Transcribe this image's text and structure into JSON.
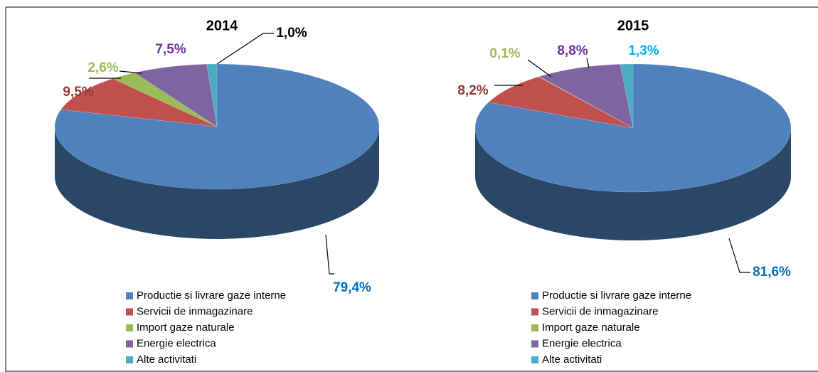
{
  "chart_data": [
    {
      "type": "pie",
      "title": "2014",
      "categories": [
        "Productie si livrare gaze interne",
        "Servicii de inmagazinare",
        "Import gaze naturale",
        "Energie electrica",
        "Alte activitati"
      ],
      "values": [
        79.4,
        9.5,
        2.6,
        7.5,
        1.0
      ],
      "value_labels": [
        "79,4%",
        "9,5%",
        "2,6%",
        "7,5%",
        "1,0%"
      ],
      "colors": [
        "#4f81bd",
        "#c0504d",
        "#9bbb59",
        "#8064a2",
        "#4bacc6"
      ],
      "label_colors": [
        "#0070c0",
        "#953735",
        "#9bbb59",
        "#7030a0",
        "#000000"
      ]
    },
    {
      "type": "pie",
      "title": "2015",
      "categories": [
        "Productie si livrare gaze interne",
        "Servicii de inmagazinare",
        "Import gaze naturale",
        "Energie electrica",
        "Alte activitati"
      ],
      "values": [
        81.6,
        8.2,
        0.1,
        8.8,
        1.3
      ],
      "value_labels": [
        "81,6%",
        "8,2%",
        "0,1%",
        "8,8%",
        "1,3%"
      ],
      "colors": [
        "#4f81bd",
        "#c0504d",
        "#9bbb59",
        "#8064a2",
        "#4bacc6"
      ],
      "label_colors": [
        "#0070c0",
        "#953735",
        "#9bbb59",
        "#7030a0",
        "#00b0f0"
      ]
    }
  ]
}
